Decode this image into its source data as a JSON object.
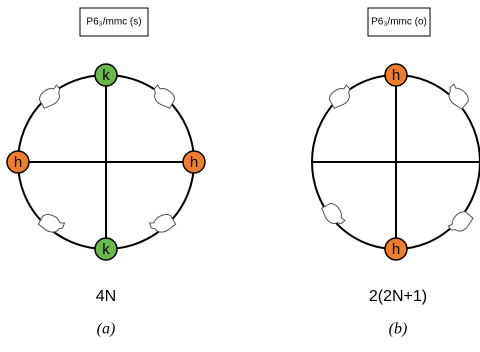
{
  "panels": [
    {
      "label": "P6₃/mmc (s)",
      "caption": "4N",
      "sublabel": "(a)",
      "nodes": [
        {
          "label": "k",
          "color": "#6ab84a"
        },
        {
          "label": "k",
          "color": "#6ab84a"
        },
        {
          "label": "h",
          "color": "#ef7d2b"
        },
        {
          "label": "h",
          "color": "#ef7d2b"
        }
      ]
    },
    {
      "label": "P6₃/mmc (o)",
      "caption": "2(2N+1)",
      "sublabel": "(b)",
      "nodes": [
        {
          "label": "h",
          "color": "#ef7d2b"
        },
        {
          "label": "h",
          "color": "#ef7d2b"
        }
      ]
    }
  ]
}
